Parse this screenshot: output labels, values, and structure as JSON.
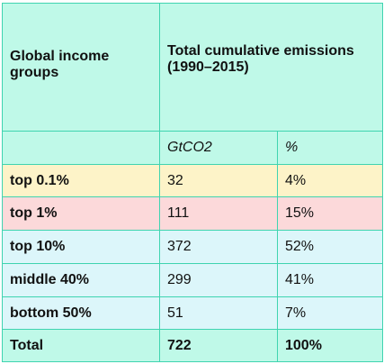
{
  "header": {
    "col_group": "Global income groups",
    "col_emissions": "Total cumulative emissions (1990–2015)",
    "sub_gtco2": "GtCO2",
    "sub_percent": "%"
  },
  "rows": [
    {
      "group": "top 0.1%",
      "gtco2": "32",
      "percent": "4%"
    },
    {
      "group": "top 1%",
      "gtco2": "111",
      "percent": "15%"
    },
    {
      "group": "top 10%",
      "gtco2": "372",
      "percent": "52%"
    },
    {
      "group": "middle 40%",
      "gtco2": "299",
      "percent": "41%"
    },
    {
      "group": "bottom 50%",
      "gtco2": "51",
      "percent": "7%"
    }
  ],
  "total": {
    "group": "Total",
    "gtco2": "722",
    "percent": "100%"
  },
  "colors": {
    "border": "#3fd4b0",
    "header_bg": "#bff9e8",
    "top01_bg": "#fdf3c8",
    "top1_bg": "#fcd9da",
    "other_bg": "#dcf6fa"
  }
}
